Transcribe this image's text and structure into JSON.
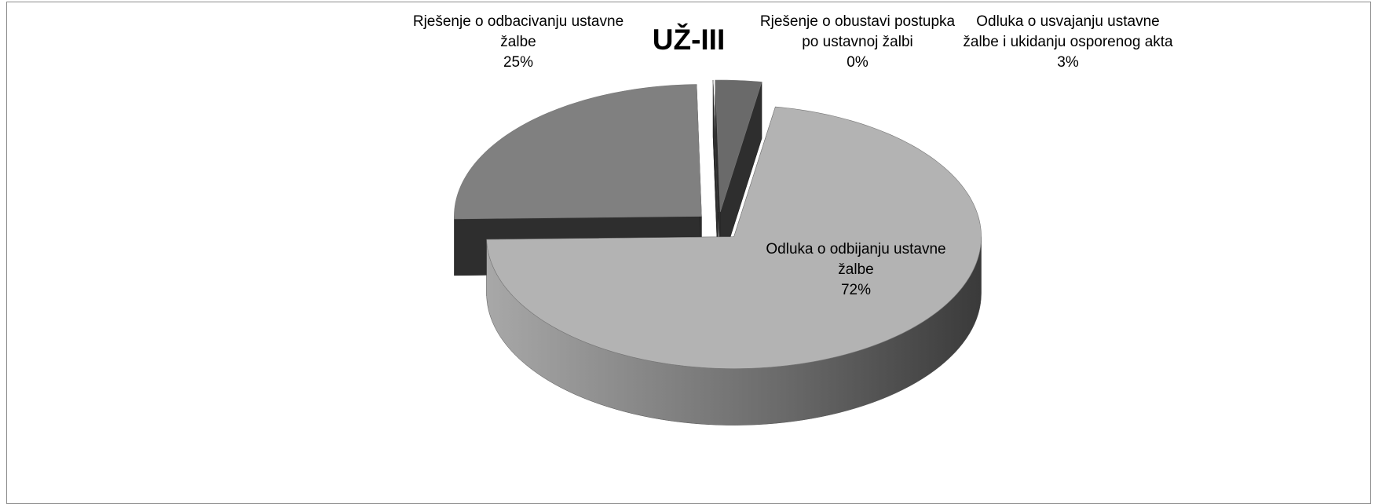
{
  "chart_data": {
    "type": "pie3d",
    "title": "UŽ-III",
    "categories": [
      "Rješenje o obustavi postupka po ustavnoj žalbi",
      "Odluka o usvajanju ustavne žalbe i ukidanju osporenog akta",
      "Odluka o odbijanju ustavne žalbe",
      "Rješenje o odbacivanju ustavne žalbe"
    ],
    "values": [
      0,
      3,
      72,
      25
    ],
    "value_labels": [
      "0%",
      "3%",
      "72%",
      "25%"
    ],
    "colors": [
      "#9a9a9a",
      "#6a6a6a",
      "#b3b3b3",
      "#808080"
    ]
  }
}
